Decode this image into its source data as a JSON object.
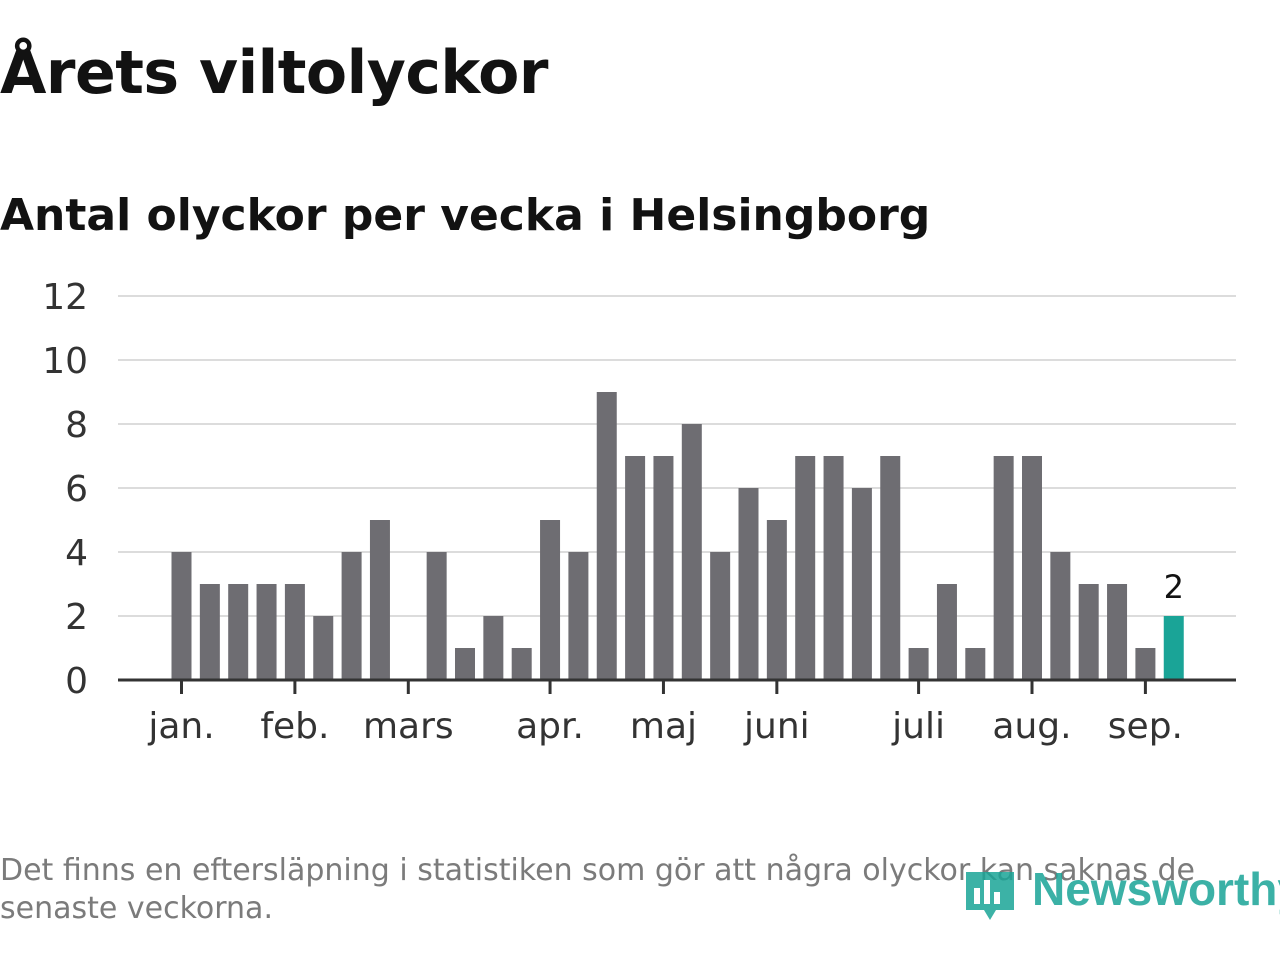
{
  "title": "Årets viltolyckor",
  "subtitle": "Antal olyckor per vecka i Helsingborg",
  "footnote": "Det finns en eftersläpning i statistiken som gör att några olyckor kan saknas de senaste veckorna.",
  "logo": {
    "text": "Newsworthy",
    "icon": "newsworthy-logo-icon"
  },
  "colors": {
    "bar": "#6e6d72",
    "highlight": "#1aa497",
    "grid": "#dcdcdc",
    "axis": "#333333",
    "text": "#121212"
  },
  "chart_data": {
    "type": "bar",
    "title": "Årets viltolyckor",
    "subtitle": "Antal olyckor per vecka i Helsingborg",
    "xlabel": "",
    "ylabel": "",
    "ylim": [
      0,
      12
    ],
    "yticks": [
      0,
      2,
      4,
      6,
      8,
      10,
      12
    ],
    "grid": true,
    "x_month_labels": [
      {
        "label": "jan.",
        "week": 1
      },
      {
        "label": "feb.",
        "week": 5
      },
      {
        "label": "mars",
        "week": 9
      },
      {
        "label": "apr.",
        "week": 14
      },
      {
        "label": "maj",
        "week": 18
      },
      {
        "label": "juni",
        "week": 22
      },
      {
        "label": "juli",
        "week": 27
      },
      {
        "label": "aug.",
        "week": 31
      },
      {
        "label": "sep.",
        "week": 35
      }
    ],
    "weeks": [
      1,
      2,
      3,
      4,
      5,
      6,
      7,
      8,
      9,
      10,
      11,
      12,
      13,
      14,
      15,
      16,
      17,
      18,
      19,
      20,
      21,
      22,
      23,
      24,
      25,
      26,
      27,
      28,
      29,
      30,
      31,
      32,
      33,
      34,
      35,
      36
    ],
    "values": [
      4,
      3,
      3,
      3,
      3,
      2,
      4,
      5,
      0,
      4,
      1,
      2,
      1,
      5,
      4,
      9,
      7,
      7,
      8,
      4,
      6,
      5,
      7,
      7,
      6,
      7,
      1,
      3,
      1,
      7,
      7,
      4,
      3,
      3,
      1,
      2
    ],
    "highlight_index": 35,
    "highlight_label": "2"
  }
}
